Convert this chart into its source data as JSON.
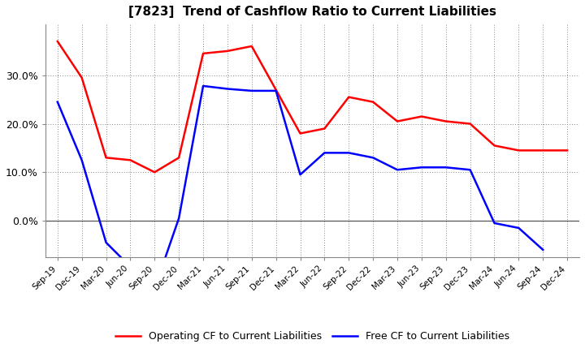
{
  "title": "[7823]  Trend of Cashflow Ratio to Current Liabilities",
  "x_labels": [
    "Sep-19",
    "Dec-19",
    "Mar-20",
    "Jun-20",
    "Sep-20",
    "Dec-20",
    "Mar-21",
    "Jun-21",
    "Sep-21",
    "Dec-21",
    "Mar-22",
    "Jun-22",
    "Sep-22",
    "Dec-22",
    "Mar-23",
    "Jun-23",
    "Sep-23",
    "Dec-23",
    "Mar-24",
    "Jun-24",
    "Sep-24",
    "Dec-24"
  ],
  "operating_cf": [
    0.37,
    0.295,
    0.13,
    0.125,
    0.1,
    0.13,
    0.345,
    0.35,
    0.36,
    0.27,
    0.18,
    0.19,
    0.255,
    0.245,
    0.205,
    0.215,
    0.205,
    0.2,
    0.155,
    0.145,
    0.145,
    0.145
  ],
  "free_cf": [
    0.245,
    0.125,
    -0.045,
    -0.095,
    -0.14,
    0.005,
    0.278,
    0.272,
    0.268,
    0.268,
    0.095,
    0.14,
    0.14,
    0.13,
    0.105,
    0.11,
    0.11,
    0.105,
    -0.005,
    -0.015,
    -0.06,
    null
  ],
  "operating_color": "#FF0000",
  "free_cf_color": "#0000FF",
  "background_color": "#FFFFFF",
  "plot_bg_color": "#FFFFFF",
  "grid_color": "#888888",
  "zero_line_color": "#555555",
  "ylim_min": -0.075,
  "ylim_max": 0.405,
  "yticks": [
    0.0,
    0.1,
    0.2,
    0.3
  ],
  "legend_labels": [
    "Operating CF to Current Liabilities",
    "Free CF to Current Liabilities"
  ]
}
